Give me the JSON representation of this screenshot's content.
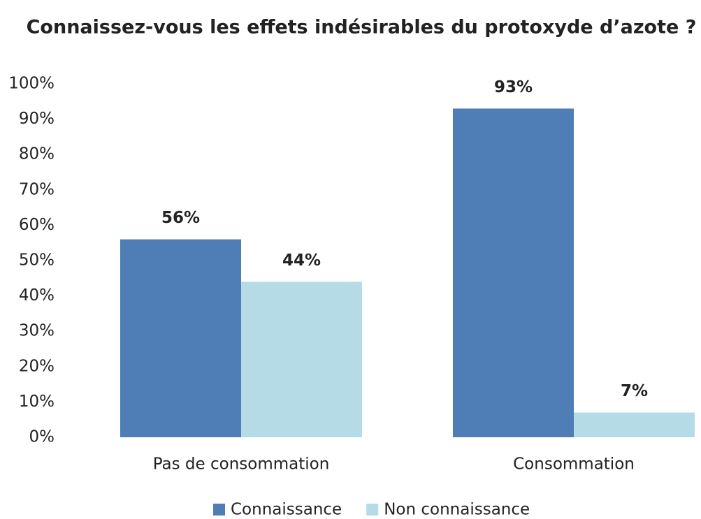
{
  "chart_data": {
    "type": "bar",
    "title": "Connaissez-vous les effets indésirables du protoxyde d’azote ?",
    "categories": [
      "Pas de consommation",
      "Consommation"
    ],
    "series": [
      {
        "name": "Connaissance",
        "color": "#4f7db5",
        "values": [
          56,
          93
        ],
        "value_labels": [
          "56%",
          "93%"
        ]
      },
      {
        "name": "Non connaissance",
        "color": "#b5dce6",
        "values": [
          44,
          7
        ],
        "value_labels": [
          "44%",
          "7%"
        ]
      }
    ],
    "ylim": [
      0,
      100
    ],
    "yticks": [
      {
        "value": 0,
        "label": "0%"
      },
      {
        "value": 10,
        "label": "10%"
      },
      {
        "value": 20,
        "label": "20%"
      },
      {
        "value": 30,
        "label": "30%"
      },
      {
        "value": 40,
        "label": "40%"
      },
      {
        "value": 50,
        "label": "50%"
      },
      {
        "value": 60,
        "label": "60%"
      },
      {
        "value": 70,
        "label": "70%"
      },
      {
        "value": 80,
        "label": "80%"
      },
      {
        "value": 90,
        "label": "90%"
      },
      {
        "value": 100,
        "label": "100%"
      }
    ],
    "grid": false,
    "legend": "bottom"
  }
}
